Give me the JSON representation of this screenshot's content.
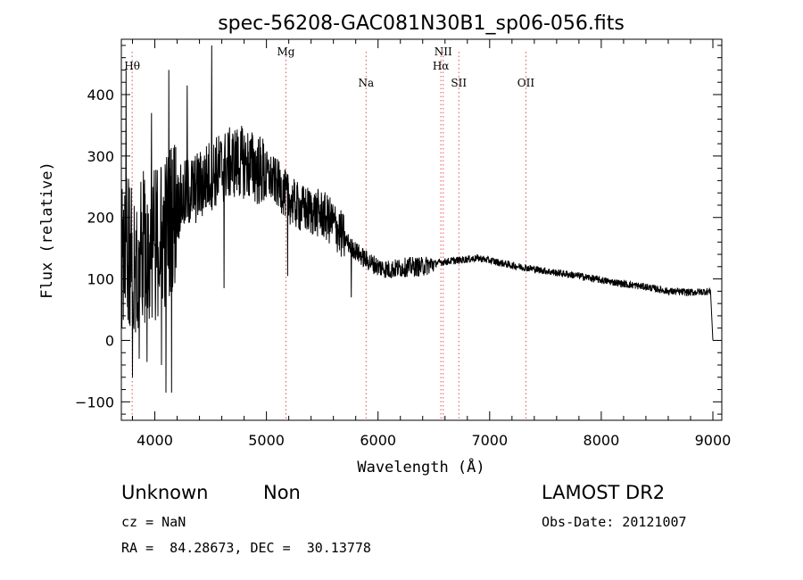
{
  "title": "spec-56208-GAC081N30B1_sp06-056.fits",
  "info": {
    "class_label": "Unknown",
    "subclass_label": "Non",
    "survey": "LAMOST DR2",
    "cz": "cz = NaN",
    "obs_date": "Obs-Date: 20121007",
    "coords": "RA =  84.28673, DEC =  30.13778"
  },
  "chart_data": {
    "type": "line",
    "xlabel": "Wavelength (Å)",
    "ylabel": "Flux (relative)",
    "xlim": [
      3700,
      9080
    ],
    "ylim": [
      -130,
      490
    ],
    "xticks": [
      4000,
      5000,
      6000,
      7000,
      8000,
      9000
    ],
    "yticks": [
      -100,
      0,
      100,
      200,
      300,
      400
    ],
    "emission_lines": [
      {
        "label": "Hθ",
        "x": 3797,
        "row": 1
      },
      {
        "label": "Mg",
        "x": 5175,
        "row": 0
      },
      {
        "label": "Na",
        "x": 5893,
        "row": 2
      },
      {
        "label": "NII",
        "x": 6584,
        "row": 0
      },
      {
        "label": "Hα",
        "x": 6563,
        "row": 1
      },
      {
        "label": "SII",
        "x": 6724,
        "row": 2
      },
      {
        "label": "OII",
        "x": 7325,
        "row": 2
      }
    ],
    "series": [
      {
        "color": "#000000",
        "anchors": {
          "x": [
            3700,
            3750,
            3800,
            3900,
            4000,
            4100,
            4200,
            4300,
            4400,
            4500,
            4600,
            4700,
            4800,
            4900,
            5000,
            5100,
            5200,
            5300,
            5400,
            5500,
            5600,
            5700,
            5800,
            5900,
            6000,
            6100,
            6200,
            6300,
            6400,
            6500,
            6600,
            6700,
            6800,
            6900,
            7000,
            7200,
            7400,
            7600,
            7800,
            8000,
            8200,
            8400,
            8600,
            8800,
            8980,
            9000
          ],
          "y": [
            140,
            150,
            130,
            150,
            160,
            180,
            220,
            240,
            250,
            270,
            280,
            290,
            290,
            280,
            270,
            255,
            230,
            215,
            210,
            205,
            190,
            165,
            145,
            130,
            120,
            115,
            118,
            120,
            120,
            125,
            128,
            130,
            132,
            134,
            130,
            122,
            116,
            110,
            105,
            98,
            92,
            87,
            80,
            78,
            80,
            0
          ]
        },
        "noise": [
          {
            "from": 3700,
            "to": 4200,
            "amp": 130
          },
          {
            "from": 4200,
            "to": 5000,
            "amp": 60
          },
          {
            "from": 5000,
            "to": 5700,
            "amp": 40
          },
          {
            "from": 5700,
            "to": 6500,
            "amp": 16
          },
          {
            "from": 6500,
            "to": 9000,
            "amp": 6
          }
        ],
        "spikes": [
          {
            "x": 3742,
            "y": 440
          },
          {
            "x": 3800,
            "y": -60
          },
          {
            "x": 3860,
            "y": -30
          },
          {
            "x": 3930,
            "y": -35
          },
          {
            "x": 3970,
            "y": 370
          },
          {
            "x": 4060,
            "y": -40
          },
          {
            "x": 4100,
            "y": -85
          },
          {
            "x": 4125,
            "y": 440
          },
          {
            "x": 4150,
            "y": -85
          },
          {
            "x": 4290,
            "y": 415
          },
          {
            "x": 4510,
            "y": 480
          },
          {
            "x": 4620,
            "y": 85
          },
          {
            "x": 5190,
            "y": 105
          },
          {
            "x": 5760,
            "y": 70
          }
        ]
      }
    ]
  }
}
